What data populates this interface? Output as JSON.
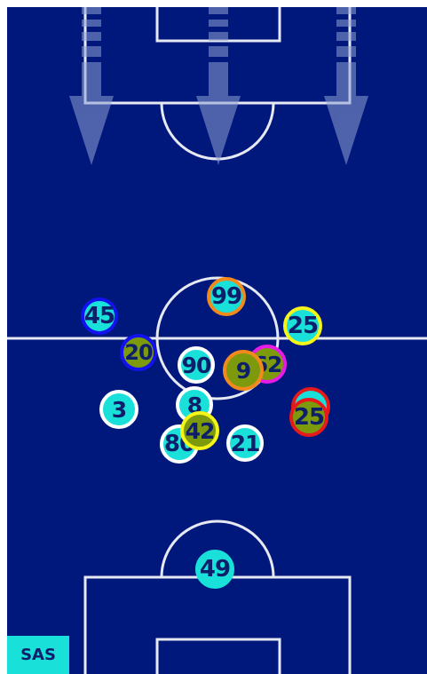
{
  "team": {
    "abbr": "SAS"
  },
  "colors": {
    "pitch": "#00187c",
    "lines": "#ffffff",
    "arrows": "#6f83c2",
    "text": "#0d1f6b"
  },
  "attack_arrows": [
    "attack-arrow-left",
    "attack-arrow-center",
    "attack-arrow-right"
  ],
  "players": [
    {
      "number": "45",
      "fill": "#19e0d9",
      "ring": "#1212ee"
    },
    {
      "number": "20",
      "fill": "#7d9a0d",
      "ring": "#1212ee"
    },
    {
      "number": "99",
      "fill": "#19e0d9",
      "ring": "#f08a1c"
    },
    {
      "number": "25",
      "fill": "#19e0d9",
      "ring": "#f5f51a"
    },
    {
      "number": "90",
      "fill": "#19e0d9",
      "ring": "#ffffff"
    },
    {
      "number": "62",
      "fill": "#7d9a0d",
      "ring": "#e81ae8"
    },
    {
      "number": "9",
      "fill": "#7d9a0d",
      "ring": "#f08a1c"
    },
    {
      "number": "",
      "fill": "#19e0d9",
      "ring": "#e61a1a"
    },
    {
      "number": "25",
      "fill": "#7d9a0d",
      "ring": "#e61a1a"
    },
    {
      "number": "3",
      "fill": "#19e0d9",
      "ring": "#ffffff"
    },
    {
      "number": "8",
      "fill": "#19e0d9",
      "ring": "#ffffff"
    },
    {
      "number": "80",
      "fill": "#19e0d9",
      "ring": "#ffffff"
    },
    {
      "number": "42",
      "fill": "#7d9a0d",
      "ring": "#f5f51a"
    },
    {
      "number": "21",
      "fill": "#19e0d9",
      "ring": "#ffffff"
    },
    {
      "number": "49",
      "fill": "#19e0d9",
      "ring": "#19e0d9"
    }
  ]
}
